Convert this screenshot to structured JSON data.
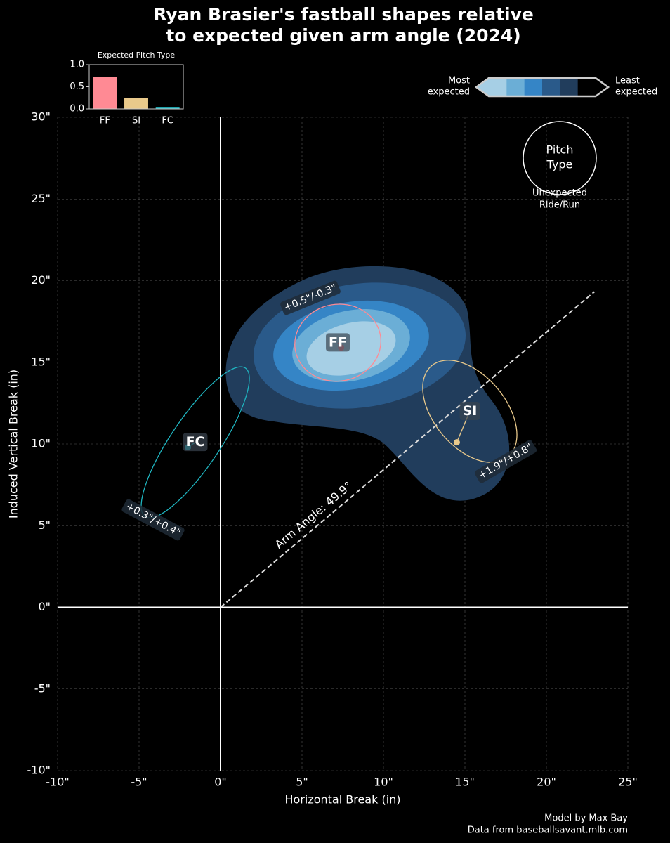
{
  "chart_data": {
    "type": "pitch_shape",
    "title": [
      "Ryan Brasier's fastball shapes relative",
      "to expected given arm angle (2024)"
    ],
    "x_label": "Horizontal Break (in)",
    "y_label": "Induced Vertical Break (in)",
    "xlim": [
      -10,
      25
    ],
    "ylim": [
      -10,
      30
    ],
    "xticks": [
      {
        "value": -10,
        "label": "-10\""
      },
      {
        "value": -5,
        "label": "-5\""
      },
      {
        "value": 0,
        "label": "0\""
      },
      {
        "value": 5,
        "label": "5\""
      },
      {
        "value": 10,
        "label": "10\""
      },
      {
        "value": 15,
        "label": "15\""
      },
      {
        "value": 20,
        "label": "20\""
      },
      {
        "value": 25,
        "label": "25\""
      }
    ],
    "yticks": [
      {
        "value": -10,
        "label": "-10\""
      },
      {
        "value": -5,
        "label": "-5\""
      },
      {
        "value": 0,
        "label": "0\""
      },
      {
        "value": 5,
        "label": "5\""
      },
      {
        "value": 10,
        "label": "10\""
      },
      {
        "value": 15,
        "label": "15\""
      },
      {
        "value": 20,
        "label": "20\""
      },
      {
        "value": 25,
        "label": "25\""
      },
      {
        "value": 30,
        "label": "30\""
      }
    ],
    "grid": true,
    "arm_angle": {
      "value": 49.9,
      "label": "Arm Angle: 49.9°"
    },
    "series": [
      {
        "name": "FF",
        "color": "#ff8a94",
        "x": 7.4,
        "y": 15.9,
        "ellipse": {
          "cx": 7.2,
          "cy": 16.2,
          "width": 5.3,
          "height": 4.7,
          "angle": 10
        },
        "annotation": "+0.5\"/-0.3\""
      },
      {
        "name": "SI",
        "color": "#e9c98b",
        "x": 14.5,
        "y": 10.1,
        "ellipse": {
          "cx": 15.3,
          "cy": 12.0,
          "width": 7.3,
          "height": 4.4,
          "angle": -50
        },
        "annotation": "+1.9\"/+0.8\""
      },
      {
        "name": "FC",
        "color": "#1fb5c0",
        "x": -2.0,
        "y": 9.8,
        "ellipse": {
          "cx": -1.55,
          "cy": 10.1,
          "width": 11.0,
          "height": 3.0,
          "angle": 56
        },
        "annotation": "+0.3\"/+0.4\""
      }
    ],
    "colorbar": {
      "colors": [
        "#a6cfe5",
        "#6baed6",
        "#3585c6",
        "#2a5a8a",
        "#213d5c",
        "#000000"
      ],
      "low_label": [
        "Most",
        "expected"
      ],
      "high_label": [
        "Least",
        "expected"
      ]
    },
    "key": {
      "center": [
        "Pitch",
        "Type"
      ],
      "below": [
        "Unexpected",
        "Ride/Run"
      ]
    },
    "inset": {
      "type": "bar",
      "title": "Expected Pitch Type",
      "categories": [
        "FF",
        "SI",
        "FC"
      ],
      "values": [
        0.72,
        0.24,
        0.03
      ],
      "colors": [
        "#ff8a94",
        "#e9c98b",
        "#1fb5c0"
      ],
      "ylim": [
        0,
        1
      ],
      "yticks": [
        {
          "value": 0,
          "label": "0.0"
        },
        {
          "value": 0.5,
          "label": "0.5"
        },
        {
          "value": 1,
          "label": "1.0"
        }
      ]
    },
    "credits": [
      "Model by Max Bay",
      "Data from baseballsavant.mlb.com"
    ]
  }
}
